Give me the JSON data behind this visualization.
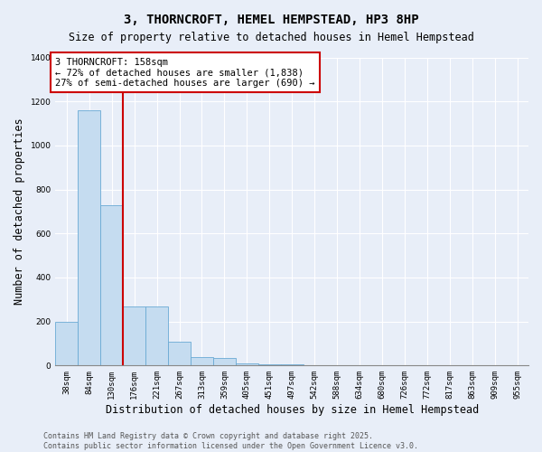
{
  "title": "3, THORNCROFT, HEMEL HEMPSTEAD, HP3 8HP",
  "subtitle": "Size of property relative to detached houses in Hemel Hempstead",
  "xlabel": "Distribution of detached houses by size in Hemel Hempstead",
  "ylabel": "Number of detached properties",
  "bins": [
    "38sqm",
    "84sqm",
    "130sqm",
    "176sqm",
    "221sqm",
    "267sqm",
    "313sqm",
    "359sqm",
    "405sqm",
    "451sqm",
    "497sqm",
    "542sqm",
    "588sqm",
    "634sqm",
    "680sqm",
    "726sqm",
    "772sqm",
    "817sqm",
    "863sqm",
    "909sqm",
    "955sqm"
  ],
  "bar_values": [
    200,
    1160,
    730,
    270,
    270,
    110,
    40,
    35,
    10,
    5,
    5,
    0,
    0,
    0,
    0,
    0,
    0,
    0,
    0,
    0,
    0
  ],
  "bar_color": "#c5dcf0",
  "bar_edge_color": "#6aaad4",
  "ylim": [
    0,
    1400
  ],
  "yticks": [
    0,
    200,
    400,
    600,
    800,
    1000,
    1200,
    1400
  ],
  "vline_color": "#cc0000",
  "annotation_text": "3 THORNCROFT: 158sqm\n← 72% of detached houses are smaller (1,838)\n27% of semi-detached houses are larger (690) →",
  "footer": "Contains HM Land Registry data © Crown copyright and database right 2025.\nContains public sector information licensed under the Open Government Licence v3.0.",
  "background_color": "#e8eef8",
  "grid_color": "#ffffff",
  "title_fontsize": 10,
  "subtitle_fontsize": 8.5,
  "axis_label_fontsize": 8.5,
  "tick_fontsize": 6.5,
  "annotation_fontsize": 7.5,
  "footer_fontsize": 6
}
